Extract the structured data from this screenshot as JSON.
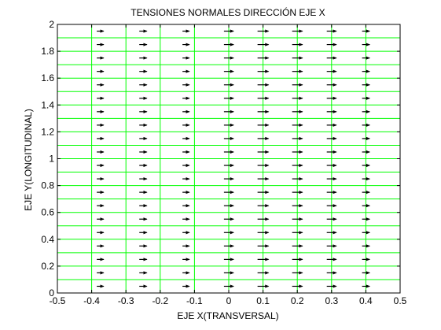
{
  "chart_data": {
    "type": "quiver",
    "title": "TENSIONES NORMALES DIRECCIÓN EJE X",
    "xlabel": "EJE X(TRANSVERSAL)",
    "ylabel": "EJE Y(LONGITUDINAL)",
    "xlim": [
      -0.5,
      0.5
    ],
    "ylim": [
      0,
      2
    ],
    "xticks": [
      -0.5,
      -0.4,
      -0.3,
      -0.2,
      -0.1,
      0,
      0.1,
      0.2,
      0.3,
      0.4,
      0.5
    ],
    "xtick_labels": [
      "-0.5",
      "-0.4",
      "-0.3",
      "-0.2",
      "-0.1",
      "0",
      "0.1",
      "0.2",
      "0.3",
      "0.4",
      "0.5"
    ],
    "yticks": [
      0,
      0.2,
      0.4,
      0.6,
      0.8,
      1,
      1.2,
      1.4,
      1.6,
      1.8,
      2
    ],
    "ytick_labels": [
      "0",
      "0.2",
      "0.4",
      "0.6",
      "0.8",
      "1",
      "1.2",
      "1.4",
      "1.6",
      "1.8",
      "2"
    ],
    "grid": false,
    "mesh": {
      "color": "#00ff00",
      "x_lines": [
        -0.5,
        -0.4,
        -0.3,
        -0.2,
        -0.1,
        0,
        0.1,
        0.2,
        0.3,
        0.4,
        0.5
      ],
      "y_start": 0,
      "y_step": 0.1,
      "y_count": 21
    },
    "vectors": {
      "color": "#000000",
      "x_positions": [
        -0.375,
        -0.25,
        -0.125,
        0.0,
        0.1,
        0.2,
        0.3,
        0.4
      ],
      "y_start": 0.05,
      "y_step": 0.1,
      "y_count": 20,
      "x_direction": [
        0.02,
        0.022,
        0.02,
        0.028,
        0.032,
        0.03,
        0.028,
        0.022
      ]
    }
  }
}
